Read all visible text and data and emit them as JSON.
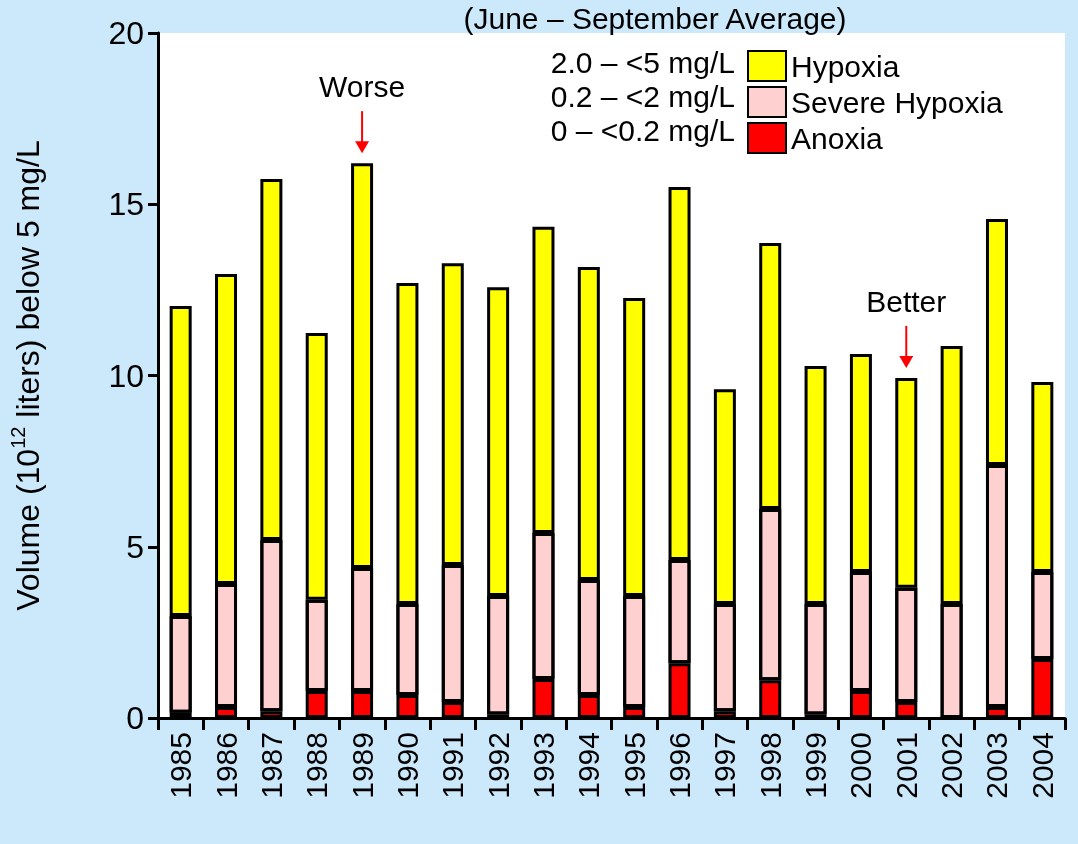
{
  "chart_data": {
    "type": "bar",
    "title": "(June – September Average)",
    "ylabel": "Volume (10$^{12}$ liters) below 5 mg/L",
    "categories": [
      "1985",
      "1986",
      "1987",
      "1988",
      "1989",
      "1990",
      "1991",
      "1992",
      "1993",
      "1994",
      "1995",
      "1996",
      "1997",
      "1998",
      "1999",
      "2000",
      "2001",
      "2002",
      "2003",
      "2004"
    ],
    "stacked": true,
    "series": [
      {
        "name": "Anoxia",
        "color": "#ff0000",
        "values": [
          0.15,
          0.32,
          0.2,
          0.79,
          0.79,
          0.67,
          0.47,
          0.1,
          1.14,
          0.67,
          0.32,
          1.6,
          0.2,
          1.1,
          0.1,
          0.79,
          0.47,
          0,
          0.32,
          1.72
        ]
      },
      {
        "name": "Severe Hypoxia",
        "color": "#ffd0d0",
        "values": [
          2.83,
          3.59,
          5.0,
          2.66,
          3.59,
          2.66,
          4.0,
          3.46,
          4.26,
          3.36,
          3.24,
          3.01,
          3.13,
          5.0,
          3.23,
          3.47,
          3.33,
          3.33,
          7.07,
          2.54
        ]
      },
      {
        "name": "Hypoxia",
        "color": "#ffff00",
        "values": [
          9.05,
          9.05,
          10.54,
          7.79,
          11.82,
          9.37,
          8.81,
          9.02,
          8.94,
          9.14,
          8.7,
          10.89,
          6.27,
          7.77,
          6.95,
          6.37,
          6.13,
          7.53,
          7.18,
          5.55
        ]
      }
    ],
    "ylim": [
      0,
      20
    ],
    "yticks": [
      0,
      5,
      10,
      15,
      20
    ],
    "grid": false,
    "legend": "top right",
    "annotations": [
      "2.0 – <5 mg/L",
      "0.2 – <2 mg/L",
      "0 – <0.2 mg/L",
      {
        "text": "Worse",
        "x": "1989",
        "y": 16.2
      },
      {
        "text": "Better",
        "x": "2001",
        "y": 9.93
      }
    ]
  }
}
